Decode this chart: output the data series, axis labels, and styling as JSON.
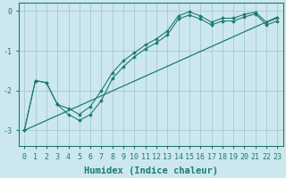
{
  "background_color": "#cce8ee",
  "grid_color": "#aacdd6",
  "line_color": "#1e7a70",
  "marker_color": "#1e7a70",
  "xlabel": "Humidex (Indice chaleur)",
  "ylim": [
    -3.4,
    0.2
  ],
  "xlim": [
    -0.5,
    23.5
  ],
  "yticks": [
    0,
    -1,
    -2,
    -3
  ],
  "xticks": [
    0,
    1,
    2,
    3,
    4,
    5,
    6,
    7,
    8,
    9,
    10,
    11,
    12,
    13,
    14,
    15,
    16,
    17,
    18,
    19,
    20,
    21,
    22,
    23
  ],
  "tick_fontsize": 6.0,
  "xlabel_fontsize": 7.5,
  "curve1_x": [
    0,
    1,
    2,
    3,
    4,
    5,
    6,
    7,
    8,
    9,
    10,
    11,
    12,
    13,
    14,
    15,
    16,
    17,
    18,
    19,
    20,
    21,
    22,
    23
  ],
  "curve1_y": [
    -3.0,
    -1.75,
    -1.8,
    -2.35,
    -2.45,
    -2.6,
    -2.4,
    -2.0,
    -1.55,
    -1.25,
    -1.05,
    -0.85,
    -0.7,
    -0.5,
    -0.12,
    -0.02,
    -0.12,
    -0.28,
    -0.18,
    -0.18,
    -0.08,
    -0.03,
    -0.28,
    -0.18
  ],
  "curve2_x": [
    0,
    1,
    2,
    3,
    4,
    5,
    6,
    7,
    8,
    9,
    10,
    11,
    12,
    13,
    14,
    15,
    16,
    17,
    18,
    19,
    20,
    21,
    22,
    23
  ],
  "curve2_y": [
    -3.0,
    -1.75,
    -1.8,
    -2.35,
    -2.6,
    -2.75,
    -2.6,
    -2.25,
    -1.7,
    -1.4,
    -1.15,
    -0.95,
    -0.8,
    -0.6,
    -0.2,
    -0.1,
    -0.2,
    -0.35,
    -0.25,
    -0.25,
    -0.15,
    -0.07,
    -0.35,
    -0.25
  ],
  "line_x": [
    0,
    23
  ],
  "line_y": [
    -3.0,
    -0.15
  ]
}
